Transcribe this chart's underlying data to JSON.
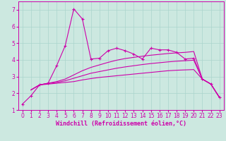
{
  "background_color": "#cce8e0",
  "grid_color": "#aad4cc",
  "line_color": "#cc00aa",
  "xlim": [
    -0.5,
    23.5
  ],
  "ylim": [
    1,
    7.5
  ],
  "xticks": [
    0,
    1,
    2,
    3,
    4,
    5,
    6,
    7,
    8,
    9,
    10,
    11,
    12,
    13,
    14,
    15,
    16,
    17,
    18,
    19,
    20,
    21,
    22,
    23
  ],
  "yticks": [
    1,
    2,
    3,
    4,
    5,
    6,
    7
  ],
  "xlabel": "Windchill (Refroidissement éolien,°C)",
  "series1_x": [
    0,
    1,
    2,
    3,
    4,
    5,
    6,
    7,
    8,
    9,
    10,
    11,
    12,
    13,
    14,
    15,
    16,
    17,
    18,
    19,
    20,
    21,
    22,
    23
  ],
  "series1_y": [
    1.35,
    1.85,
    2.5,
    2.6,
    3.65,
    4.85,
    7.05,
    6.45,
    4.05,
    4.1,
    4.55,
    4.7,
    4.55,
    4.35,
    4.05,
    4.7,
    4.6,
    4.6,
    4.45,
    4.05,
    4.1,
    2.85,
    2.55,
    1.75
  ],
  "series2_x": [
    1,
    2,
    3,
    4,
    5,
    6,
    7,
    8,
    9,
    10,
    11,
    12,
    13,
    14,
    15,
    16,
    17,
    18,
    19,
    20,
    21,
    22,
    23
  ],
  "series2_y": [
    2.2,
    2.5,
    2.55,
    2.6,
    2.65,
    2.7,
    2.8,
    2.88,
    2.95,
    3.0,
    3.05,
    3.1,
    3.15,
    3.2,
    3.25,
    3.3,
    3.35,
    3.38,
    3.4,
    3.42,
    2.85,
    2.55,
    1.75
  ],
  "series3_x": [
    1,
    2,
    3,
    4,
    5,
    6,
    7,
    8,
    9,
    10,
    11,
    12,
    13,
    14,
    15,
    16,
    17,
    18,
    19,
    20,
    21,
    22,
    23
  ],
  "series3_y": [
    2.2,
    2.5,
    2.6,
    2.65,
    2.75,
    2.9,
    3.05,
    3.2,
    3.3,
    3.4,
    3.5,
    3.58,
    3.65,
    3.72,
    3.78,
    3.83,
    3.88,
    3.92,
    3.95,
    3.98,
    2.85,
    2.55,
    1.75
  ],
  "series4_x": [
    1,
    2,
    3,
    4,
    5,
    6,
    7,
    8,
    9,
    10,
    11,
    12,
    13,
    14,
    15,
    16,
    17,
    18,
    19,
    20,
    21,
    22,
    23
  ],
  "series4_y": [
    2.2,
    2.5,
    2.6,
    2.7,
    2.85,
    3.1,
    3.35,
    3.55,
    3.7,
    3.85,
    3.98,
    4.08,
    4.15,
    4.22,
    4.28,
    4.33,
    4.38,
    4.42,
    4.45,
    4.5,
    2.85,
    2.55,
    1.75
  ],
  "tick_fontsize": 5.5,
  "label_fontsize": 6
}
